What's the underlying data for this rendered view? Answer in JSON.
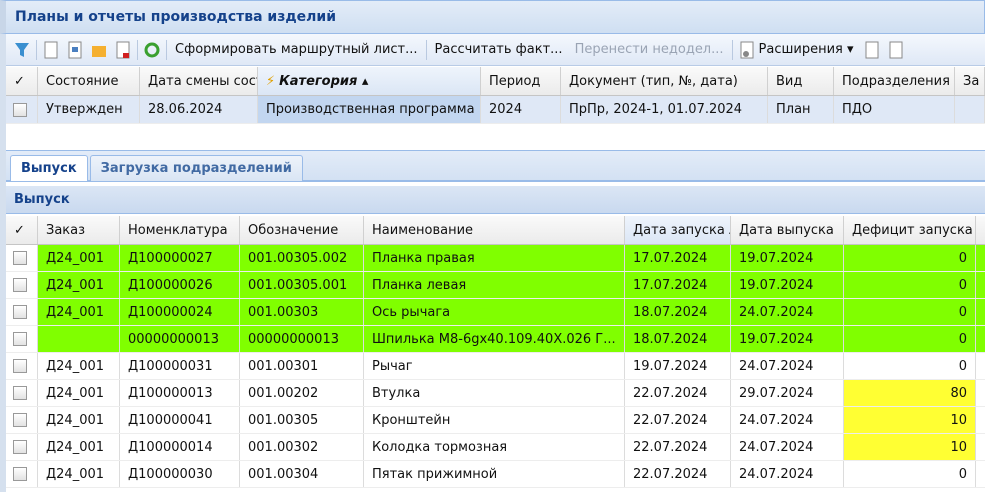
{
  "window": {
    "title": "Планы и отчеты производства изделий"
  },
  "toolbar": {
    "form_route": "Сформировать маршрутный лист...",
    "calc_fact": "Рассчитать факт...",
    "transfer": "Перенести недодел...",
    "extensions": "Расширения ▾"
  },
  "plans_grid": {
    "columns": [
      "✓",
      "Состояние",
      "Дата смены сост",
      "Категория ▴",
      "Период",
      "Документ (тип, №, дата)",
      "Вид",
      "Подразделения",
      "За"
    ],
    "rows": [
      [
        "",
        "Утвержден",
        "28.06.2024",
        "Производственная программа",
        "2024",
        "ПрПр, 2024-1, 01.07.2024",
        "План",
        "ПДО",
        ""
      ]
    ]
  },
  "tabs": [
    {
      "label": "Выпуск",
      "active": true
    },
    {
      "label": "Загрузка подразделений",
      "active": false
    }
  ],
  "panel": {
    "title": "Выпуск"
  },
  "output_grid": {
    "columns": [
      "✓",
      "Заказ",
      "Номенклатура",
      "Обозначение",
      "Наименование",
      "Дата запуска ▴",
      "Дата выпуска",
      "Дефицит запуска"
    ],
    "colors": {
      "green": "#80ff00",
      "yellow": "#ffff33"
    },
    "rows": [
      {
        "order": "Д24_001",
        "nom": "Д100000027",
        "des": "001.00305.002",
        "name": "Планка правая",
        "start": "17.07.2024",
        "release": "19.07.2024",
        "deficit": "0",
        "hl": "green"
      },
      {
        "order": "Д24_001",
        "nom": "Д100000026",
        "des": "001.00305.001",
        "name": "Планка левая",
        "start": "17.07.2024",
        "release": "19.07.2024",
        "deficit": "0",
        "hl": "green"
      },
      {
        "order": "Д24_001",
        "nom": "Д100000024",
        "des": "001.00303",
        "name": "Ось рычага",
        "start": "18.07.2024",
        "release": "24.07.2024",
        "deficit": "0",
        "hl": "green"
      },
      {
        "order": "",
        "nom": "00000000013",
        "des": "00000000013",
        "name": "Шпилька М8-6gx40.109.40X.026 Г...",
        "start": "18.07.2024",
        "release": "19.07.2024",
        "deficit": "0",
        "hl": "green"
      },
      {
        "order": "Д24_001",
        "nom": "Д100000031",
        "des": "001.00301",
        "name": "Рычаг",
        "start": "19.07.2024",
        "release": "24.07.2024",
        "deficit": "0",
        "hl": ""
      },
      {
        "order": "Д24_001",
        "nom": "Д100000013",
        "des": "001.00202",
        "name": "Втулка",
        "start": "22.07.2024",
        "release": "29.07.2024",
        "deficit": "80",
        "hl": "yellow"
      },
      {
        "order": "Д24_001",
        "nom": "Д100000041",
        "des": "001.00305",
        "name": "Кронштейн",
        "start": "22.07.2024",
        "release": "24.07.2024",
        "deficit": "10",
        "hl": "yellow"
      },
      {
        "order": "Д24_001",
        "nom": "Д100000014",
        "des": "001.00302",
        "name": "Колодка тормозная",
        "start": "22.07.2024",
        "release": "24.07.2024",
        "deficit": "10",
        "hl": "yellow"
      },
      {
        "order": "Д24_001",
        "nom": "Д100000030",
        "des": "001.00304",
        "name": "Пятак прижимной",
        "start": "22.07.2024",
        "release": "24.07.2024",
        "deficit": "0",
        "hl": ""
      }
    ]
  }
}
